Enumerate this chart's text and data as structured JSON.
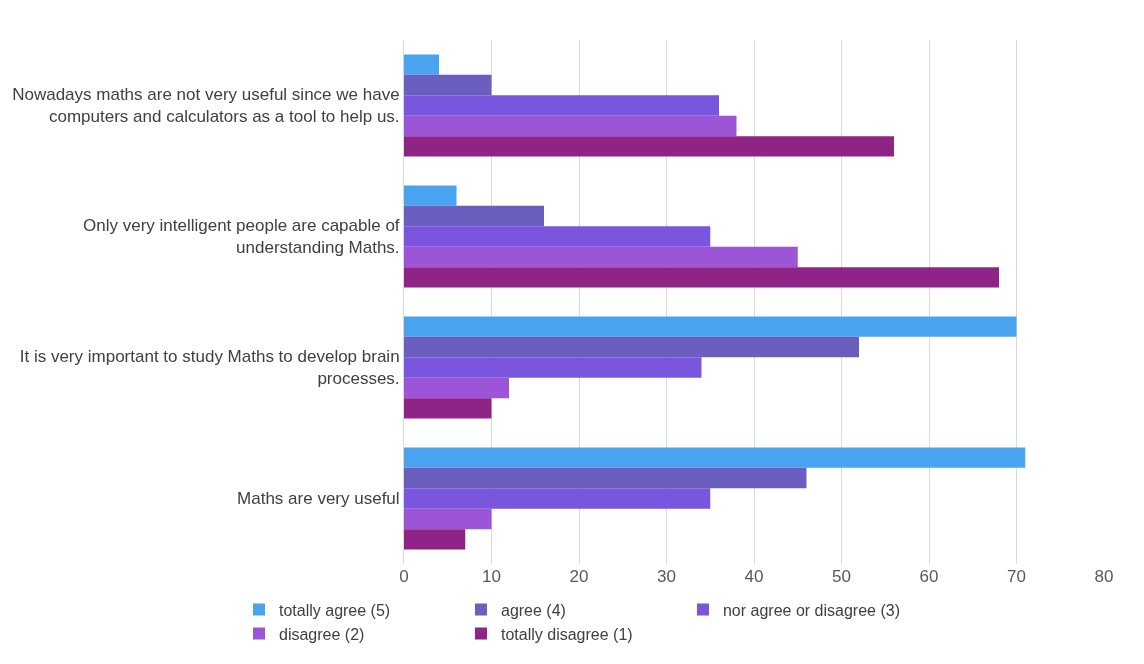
{
  "chart_data": {
    "type": "bar",
    "orientation": "horizontal",
    "categories": [
      "Nowadays maths are not very useful since we have computers and calculators as a tool to help us.",
      "Only very intelligent people are capable of understanding Maths.",
      "It is very important to study Maths to develop brain processes.",
      "Maths are very useful"
    ],
    "series": [
      {
        "name": "totally agree (5)",
        "color": "#4aa3ee",
        "values": [
          4,
          6,
          70,
          71
        ]
      },
      {
        "name": "agree (4)",
        "color": "#6a5fbf",
        "values": [
          10,
          16,
          52,
          46
        ]
      },
      {
        "name": "nor agree or disagree (3)",
        "color": "#7a55dd",
        "values": [
          36,
          35,
          34,
          35
        ]
      },
      {
        "name": "disagree (2)",
        "color": "#9b55d6",
        "values": [
          38,
          45,
          12,
          10
        ]
      },
      {
        "name": "totally disagree (1)",
        "color": "#8e2485",
        "values": [
          56,
          68,
          10,
          7
        ]
      }
    ],
    "xlim": [
      0,
      80
    ],
    "xticks": [
      0,
      10,
      20,
      30,
      40,
      50,
      60,
      70,
      80
    ],
    "grid": "x",
    "legend": "bottom"
  }
}
